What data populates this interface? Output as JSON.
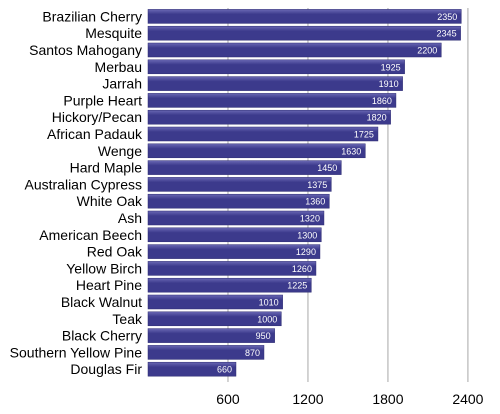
{
  "chart_data": {
    "type": "bar",
    "orientation": "horizontal",
    "categories": [
      "Brazilian Cherry",
      "Mesquite",
      "Santos Mahogany",
      "Merbau",
      "Jarrah",
      "Purple Heart",
      "Hickory/Pecan",
      "African Padauk",
      "Wenge",
      "Hard Maple",
      "Australian Cypress",
      "White Oak",
      "Ash",
      "American Beech",
      "Red Oak",
      "Yellow Birch",
      "Heart Pine",
      "Black Walnut",
      "Teak",
      "Black Cherry",
      "Southern Yellow Pine",
      "Douglas Fir"
    ],
    "values": [
      2350,
      2345,
      2200,
      1925,
      1910,
      1860,
      1820,
      1725,
      1630,
      1450,
      1375,
      1360,
      1320,
      1300,
      1290,
      1260,
      1225,
      1010,
      1000,
      950,
      870,
      660
    ],
    "value_labels": [
      "2350",
      "2345",
      "2200",
      "1925",
      "1910",
      "1860",
      "1820",
      "1725",
      "1630",
      "1450",
      "1375",
      "1360",
      "1320",
      "1300",
      "1290",
      "1260",
      "1225",
      "1010",
      "1000",
      "950",
      "870",
      "660"
    ],
    "x_ticks": [
      600,
      1200,
      1800,
      2400
    ],
    "x_tick_labels": [
      "600",
      "1200",
      "1800",
      "2400"
    ],
    "xlim": [
      0,
      2550
    ],
    "grid": true,
    "title": "",
    "xlabel": "",
    "ylabel": ""
  },
  "colors": {
    "bar": "#3c3a8c",
    "bar_highlight": "#6a68b4",
    "grid": "#a8a8a8",
    "value_text": "#ffffff"
  }
}
